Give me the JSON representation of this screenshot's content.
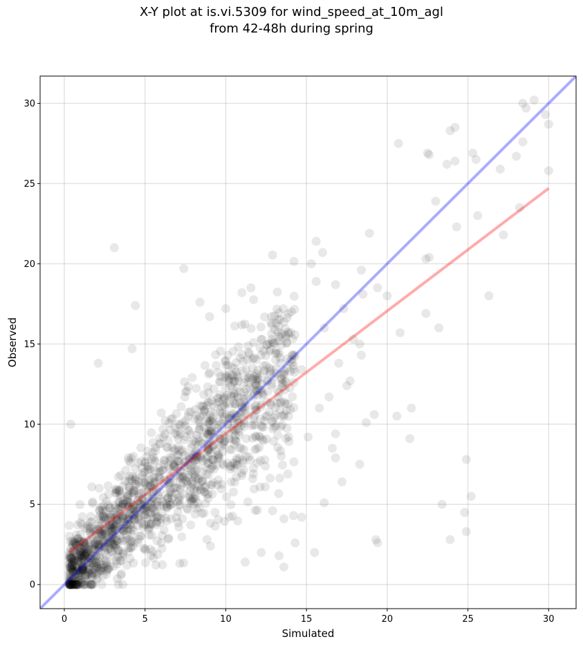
{
  "chart_data": {
    "type": "scatter",
    "title_lines": [
      "X-Y plot at is.vi.5309 for wind_speed_at_10m_agl",
      "from 42-48h during spring"
    ],
    "xlabel": "Simulated",
    "ylabel": "Observed",
    "xlim": [
      -1.5,
      31.7
    ],
    "ylim": [
      -1.5,
      31.7
    ],
    "xticks": [
      0,
      5,
      10,
      15,
      20,
      25,
      30
    ],
    "yticks": [
      0,
      5,
      10,
      15,
      20,
      25,
      30
    ],
    "grid": true,
    "point_color": "#000000",
    "point_alpha": 0.09,
    "sample_points": [
      [
        0.4,
        10.0
      ],
      [
        3.1,
        21.0
      ],
      [
        4.4,
        17.4
      ],
      [
        2.1,
        13.8
      ],
      [
        4.2,
        14.7
      ],
      [
        7.4,
        19.7
      ],
      [
        8.4,
        17.6
      ],
      [
        10.0,
        17.2
      ],
      [
        9.0,
        16.7
      ],
      [
        11.0,
        18.2
      ],
      [
        15.6,
        21.4
      ],
      [
        16.0,
        20.7
      ],
      [
        15.3,
        20.0
      ],
      [
        18.9,
        21.9
      ],
      [
        20.7,
        27.5
      ],
      [
        22.5,
        26.9
      ],
      [
        22.6,
        26.8
      ],
      [
        23.9,
        28.3
      ],
      [
        24.2,
        28.5
      ],
      [
        24.2,
        26.4
      ],
      [
        22.4,
        20.3
      ],
      [
        22.6,
        20.4
      ],
      [
        23.0,
        23.9
      ],
      [
        24.3,
        22.3
      ],
      [
        25.5,
        26.5
      ],
      [
        25.3,
        26.9
      ],
      [
        25.6,
        23.0
      ],
      [
        26.3,
        18.0
      ],
      [
        27.2,
        21.8
      ],
      [
        28.0,
        26.7
      ],
      [
        28.2,
        23.5
      ],
      [
        28.4,
        30.0
      ],
      [
        28.6,
        29.7
      ],
      [
        29.1,
        30.2
      ],
      [
        29.8,
        29.3
      ],
      [
        30.0,
        28.7
      ],
      [
        30.0,
        25.8
      ],
      [
        28.4,
        27.6
      ],
      [
        27.0,
        25.9
      ],
      [
        23.7,
        26.2
      ],
      [
        20.0,
        18.0
      ],
      [
        20.8,
        15.7
      ],
      [
        21.5,
        11.0
      ],
      [
        21.4,
        9.1
      ],
      [
        20.6,
        10.5
      ],
      [
        22.4,
        16.9
      ],
      [
        23.2,
        16.0
      ],
      [
        18.7,
        10.1
      ],
      [
        19.2,
        10.6
      ],
      [
        18.3,
        7.5
      ],
      [
        23.4,
        5.0
      ],
      [
        24.9,
        7.8
      ],
      [
        25.2,
        5.5
      ],
      [
        24.8,
        4.5
      ],
      [
        24.9,
        3.3
      ],
      [
        23.9,
        2.8
      ],
      [
        19.3,
        2.8
      ],
      [
        19.4,
        2.6
      ],
      [
        16.1,
        5.1
      ],
      [
        15.5,
        2.0
      ],
      [
        14.2,
        4.3
      ],
      [
        14.3,
        2.6
      ],
      [
        13.6,
        1.1
      ],
      [
        13.3,
        1.8
      ],
      [
        11.2,
        1.4
      ],
      [
        12.2,
        2.0
      ],
      [
        12.9,
        4.6
      ],
      [
        13.6,
        4.1
      ],
      [
        14.7,
        4.2
      ],
      [
        16.8,
        7.9
      ],
      [
        17.2,
        6.4
      ],
      [
        16.6,
        8.5
      ],
      [
        16.8,
        9.4
      ],
      [
        17.5,
        12.4
      ],
      [
        17.7,
        12.7
      ],
      [
        18.3,
        15.0
      ],
      [
        18.4,
        14.3
      ],
      [
        18.5,
        18.1
      ],
      [
        18.4,
        19.6
      ],
      [
        19.4,
        18.5
      ],
      [
        16.1,
        16.0
      ],
      [
        15.6,
        18.9
      ],
      [
        16.8,
        18.7
      ],
      [
        17.3,
        17.2
      ],
      [
        17.0,
        13.8
      ],
      [
        17.9,
        15.3
      ],
      [
        16.4,
        11.7
      ],
      [
        15.1,
        9.2
      ],
      [
        15.8,
        11.0
      ],
      [
        14.7,
        13.4
      ]
    ],
    "fit_line": {
      "x": [
        0.3,
        30.0
      ],
      "y": [
        2.0,
        24.7
      ],
      "color": "#ff0000",
      "alpha": 0.33
    },
    "identity_line": {
      "x": [
        -1.5,
        31.7
      ],
      "y": [
        -1.5,
        31.7
      ],
      "color": "#0000ff",
      "alpha": 0.33
    }
  }
}
